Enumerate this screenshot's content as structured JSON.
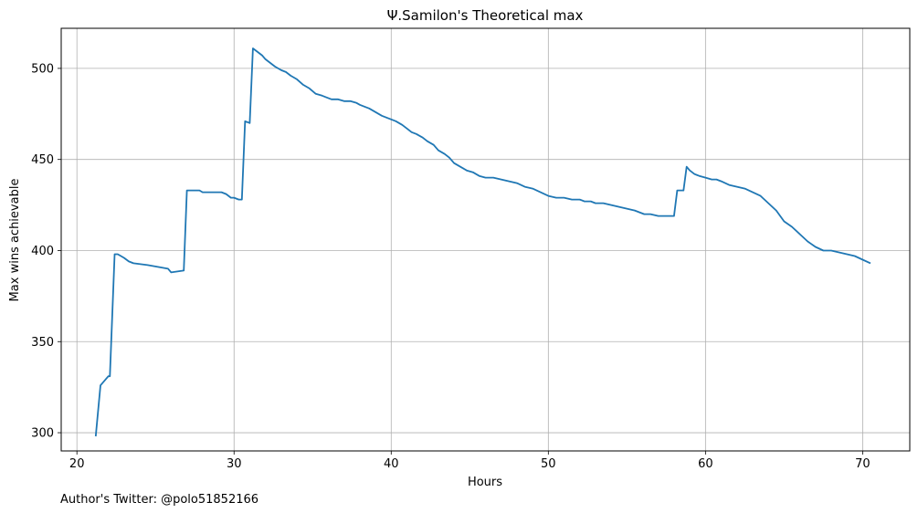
{
  "chart_data": {
    "type": "line",
    "title": "Ψ.Samilon's Theoretical max",
    "xlabel": "Hours",
    "ylabel": "Max wins achievable",
    "xlim": [
      19,
      73
    ],
    "ylim": [
      290,
      522
    ],
    "xticks": [
      20,
      30,
      40,
      50,
      60,
      70
    ],
    "yticks": [
      300,
      350,
      400,
      450,
      500
    ],
    "grid": true,
    "series": [
      {
        "color": "#1f77b4",
        "x": [
          21.2,
          21.5,
          22.0,
          22.1,
          22.4,
          22.6,
          22.8,
          23.0,
          23.3,
          23.6,
          24.5,
          25.8,
          26.0,
          26.8,
          27.0,
          27.2,
          27.5,
          27.8,
          28.0,
          28.3,
          28.6,
          28.9,
          29.2,
          29.5,
          29.8,
          30.0,
          30.3,
          30.5,
          30.7,
          31.0,
          31.2,
          31.5,
          31.8,
          32.0,
          32.3,
          32.6,
          33.0,
          33.3,
          33.6,
          34.0,
          34.4,
          34.8,
          35.2,
          35.6,
          35.9,
          36.2,
          36.6,
          37.0,
          37.4,
          37.8,
          38.0,
          38.3,
          38.6,
          39.0,
          39.4,
          39.7,
          40.0,
          40.3,
          40.7,
          41.0,
          41.3,
          41.6,
          42.0,
          42.3,
          42.7,
          43.0,
          43.4,
          43.7,
          44.0,
          44.4,
          44.8,
          45.2,
          45.6,
          46.0,
          46.5,
          47.0,
          47.5,
          48.0,
          48.5,
          49.0,
          49.5,
          50.0,
          50.5,
          51.0,
          51.5,
          52.0,
          52.3,
          52.7,
          53.0,
          53.5,
          54.0,
          54.5,
          55.0,
          55.5,
          55.8,
          56.1,
          56.5,
          57.0,
          57.3,
          57.6,
          58.0,
          58.2,
          58.4,
          58.6,
          58.8,
          59.0,
          59.3,
          59.6,
          60.0,
          60.4,
          60.7,
          61.0,
          61.5,
          62.0,
          62.5,
          63.0,
          63.5,
          64.0,
          64.5,
          65.0,
          65.5,
          66.0,
          66.5,
          67.0,
          67.5,
          68.0,
          68.5,
          69.0,
          69.5,
          70.0,
          70.5
        ],
        "y": [
          298,
          326,
          331,
          331,
          398,
          398,
          397,
          396,
          394,
          393,
          392,
          390,
          388,
          389,
          433,
          433,
          433,
          433,
          432,
          432,
          432,
          432,
          432,
          431,
          429,
          429,
          428,
          428,
          471,
          470,
          511,
          509,
          507,
          505,
          503,
          501,
          499,
          498,
          496,
          494,
          491,
          489,
          486,
          485,
          484,
          483,
          483,
          482,
          482,
          481,
          480,
          479,
          478,
          476,
          474,
          473,
          472,
          471,
          469,
          467,
          465,
          464,
          462,
          460,
          458,
          455,
          453,
          451,
          448,
          446,
          444,
          443,
          441,
          440,
          440,
          439,
          438,
          437,
          435,
          434,
          432,
          430,
          429,
          429,
          428,
          428,
          427,
          427,
          426,
          426,
          425,
          424,
          423,
          422,
          421,
          420,
          420,
          419,
          419,
          419,
          419,
          433,
          433,
          433,
          446,
          444,
          442,
          441,
          440,
          439,
          439,
          438,
          436,
          435,
          434,
          432,
          430,
          426,
          422,
          416,
          413,
          409,
          405,
          402,
          400,
          400,
          399,
          398,
          397,
          395,
          393
        ]
      }
    ]
  },
  "footer": {
    "author": "Author's Twitter: @polo51852166"
  }
}
